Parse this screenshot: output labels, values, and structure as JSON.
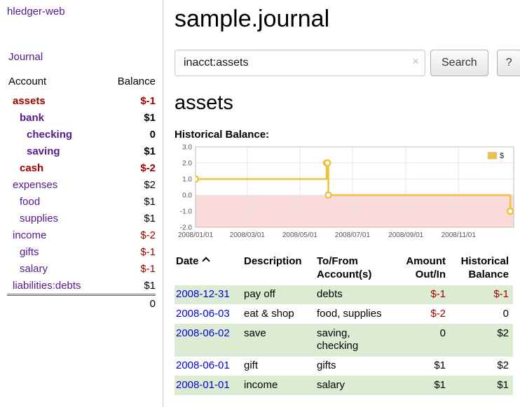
{
  "app": {
    "brand": "hledger-web",
    "nav": {
      "journal": "Journal"
    }
  },
  "colors": {
    "sidebar_link": "#551a8b",
    "date_link": "#0000e0",
    "negative": "#a40000",
    "row_stripe": "#dcecd3"
  },
  "sidebar": {
    "header_account": "Account",
    "header_balance": "Balance",
    "accounts": [
      {
        "name": "assets",
        "balance": "$-1",
        "depth": 0,
        "in_query": true,
        "name_negative": true,
        "balance_negative": true
      },
      {
        "name": "bank",
        "balance": "$1",
        "depth": 1,
        "in_query": true,
        "name_negative": false,
        "balance_negative": false
      },
      {
        "name": "checking",
        "balance": "0",
        "depth": 2,
        "in_query": true,
        "name_negative": false,
        "balance_negative": false
      },
      {
        "name": "saving",
        "balance": "$1",
        "depth": 2,
        "in_query": true,
        "name_negative": false,
        "balance_negative": false
      },
      {
        "name": "cash",
        "balance": "$-2",
        "depth": 1,
        "in_query": true,
        "name_negative": true,
        "balance_negative": true
      },
      {
        "name": "expenses",
        "balance": "$2",
        "depth": 0,
        "in_query": false,
        "name_negative": false,
        "balance_negative": false
      },
      {
        "name": "food",
        "balance": "$1",
        "depth": 1,
        "in_query": false,
        "name_negative": false,
        "balance_negative": false
      },
      {
        "name": "supplies",
        "balance": "$1",
        "depth": 1,
        "in_query": false,
        "name_negative": false,
        "balance_negative": false
      },
      {
        "name": "income",
        "balance": "$-2",
        "depth": 0,
        "in_query": false,
        "name_negative": false,
        "balance_negative": true
      },
      {
        "name": "gifts",
        "balance": "$-1",
        "depth": 1,
        "in_query": false,
        "name_negative": false,
        "balance_negative": true
      },
      {
        "name": "salary",
        "balance": "$-1",
        "depth": 1,
        "in_query": false,
        "name_negative": false,
        "balance_negative": true
      },
      {
        "name": "liabilities:debts",
        "balance": "$1",
        "depth": 0,
        "in_query": false,
        "name_negative": false,
        "balance_negative": false
      }
    ],
    "total": "0"
  },
  "main": {
    "title": "sample.journal",
    "search": {
      "value": "inacct:assets",
      "clear_icon": "×",
      "button_label": "Search",
      "help_label": "?"
    },
    "account_title": "assets"
  },
  "chart_data": {
    "type": "line",
    "step": true,
    "title": "Historical Balance:",
    "xlim": [
      "2008-01-01",
      "2009-01-04"
    ],
    "ylim": [
      -2,
      3
    ],
    "x_ticks": [
      "2008/01/01",
      "2008/03/01",
      "2008/05/01",
      "2008/07/01",
      "2008/09/01",
      "2008/11/01"
    ],
    "y_ticks": [
      -2,
      -1,
      0,
      1,
      2,
      3
    ],
    "grid": true,
    "legend_position": "top-right",
    "negative_region_color": "#fbdada",
    "series": [
      {
        "name": "$",
        "color": "#edc240",
        "points": [
          [
            "2008-01-01",
            1
          ],
          [
            "2008-06-01",
            2
          ],
          [
            "2008-06-02",
            2
          ],
          [
            "2008-06-03",
            0
          ],
          [
            "2008-12-31",
            -1
          ]
        ]
      }
    ]
  },
  "register": {
    "sort_icon": "caret-up",
    "headers": [
      "Date",
      "Description",
      "To/From Account(s)",
      "Amount Out/In",
      "Historical Balance"
    ],
    "rows": [
      {
        "date": "2008-12-31",
        "description": "pay off",
        "accounts": "debts",
        "amount": "$-1",
        "amount_negative": true,
        "balance": "$-1",
        "balance_negative": true
      },
      {
        "date": "2008-06-03",
        "description": "eat & shop",
        "accounts": "food, supplies",
        "amount": "$-2",
        "amount_negative": true,
        "balance": "0",
        "balance_negative": false
      },
      {
        "date": "2008-06-02",
        "description": "save",
        "accounts": "saving, checking",
        "amount": "0",
        "amount_negative": false,
        "balance": "$2",
        "balance_negative": false
      },
      {
        "date": "2008-06-01",
        "description": "gift",
        "accounts": "gifts",
        "amount": "$1",
        "amount_negative": false,
        "balance": "$2",
        "balance_negative": false
      },
      {
        "date": "2008-01-01",
        "description": "income",
        "accounts": "salary",
        "amount": "$1",
        "amount_negative": false,
        "balance": "$1",
        "balance_negative": false
      }
    ]
  }
}
